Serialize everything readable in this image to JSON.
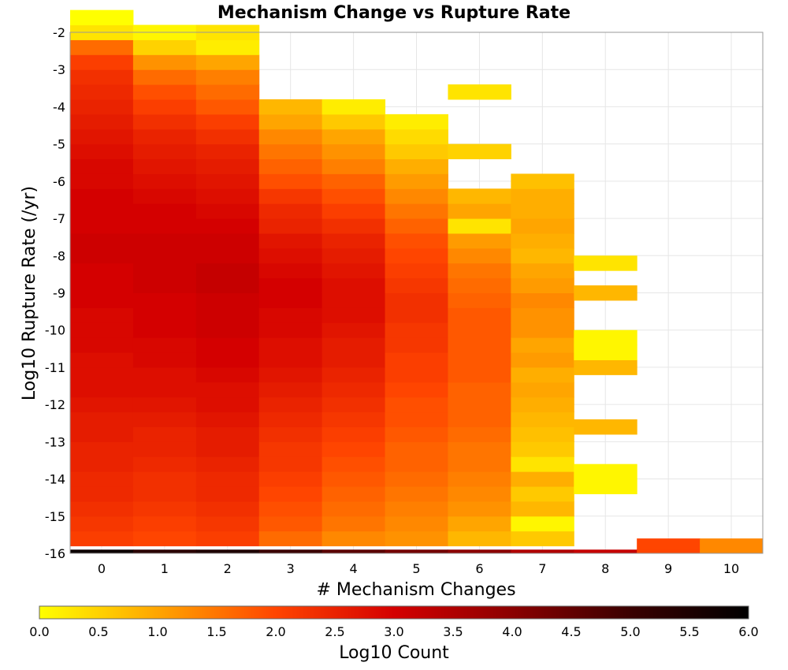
{
  "chart_data": {
    "type": "heatmap",
    "title": "Mechanism Change vs Rupture Rate",
    "xlabel": "# Mechanism Changes",
    "ylabel": "Log10 Rupture Rate (/yr)",
    "xlim": [
      -0.5,
      10.5
    ],
    "ylim": [
      -16,
      -2
    ],
    "x_ticks": [
      0,
      1,
      2,
      3,
      4,
      5,
      6,
      7,
      8,
      9,
      10
    ],
    "y_ticks": [
      -2,
      -3,
      -4,
      -5,
      -6,
      -7,
      -8,
      -9,
      -10,
      -11,
      -12,
      -13,
      -14,
      -15,
      -16
    ],
    "y_bin_width": 0.4,
    "grid": true,
    "colorbar": {
      "label": "Log10 Count",
      "range": [
        0.0,
        6.0
      ],
      "ticks": [
        "0.0",
        "0.5",
        "1.0",
        "1.5",
        "2.0",
        "2.5",
        "3.0",
        "3.5",
        "4.0",
        "4.5",
        "5.0",
        "5.5",
        "6.0"
      ],
      "colors": [
        "#ffff00",
        "#ffa500",
        "#ff4500",
        "#d40000",
        "#8b0000",
        "#3a0000",
        "#000000"
      ]
    },
    "columns": [
      {
        "x": 0,
        "y_start": -15.8,
        "values": [
          2.1,
          2.2,
          2.3,
          2.4,
          2.4,
          2.5,
          2.5,
          2.6,
          2.6,
          2.7,
          2.8,
          2.8,
          2.8,
          2.9,
          2.9,
          2.9,
          3.0,
          3.0,
          3.0,
          3.1,
          3.1,
          3.0,
          3.0,
          3.0,
          2.9,
          2.9,
          2.8,
          2.7,
          2.6,
          2.5,
          2.4,
          2.3,
          2.1,
          1.6,
          0.3,
          0.0
        ]
      },
      {
        "x": 1,
        "y_start": -15.8,
        "values": [
          2.0,
          2.1,
          2.2,
          2.3,
          2.3,
          2.4,
          2.5,
          2.5,
          2.6,
          2.7,
          2.8,
          2.8,
          2.9,
          2.9,
          3.0,
          3.0,
          3.0,
          3.1,
          3.1,
          3.1,
          3.1,
          3.0,
          3.0,
          2.9,
          2.8,
          2.7,
          2.6,
          2.5,
          2.3,
          2.1,
          1.9,
          1.6,
          1.2,
          0.5,
          0.1
        ]
      },
      {
        "x": 2,
        "y_start": -15.8,
        "values": [
          2.1,
          2.2,
          2.3,
          2.4,
          2.4,
          2.5,
          2.6,
          2.6,
          2.7,
          2.8,
          2.8,
          2.9,
          3.0,
          3.0,
          3.1,
          3.1,
          3.1,
          3.2,
          3.2,
          3.1,
          3.1,
          3.0,
          2.9,
          2.8,
          2.7,
          2.6,
          2.5,
          2.3,
          2.1,
          1.8,
          1.6,
          1.4,
          1.0,
          0.2,
          0.3
        ]
      },
      {
        "x": 3,
        "y_start": -15.8,
        "values": [
          1.6,
          1.8,
          1.9,
          2.0,
          2.1,
          2.2,
          2.2,
          2.3,
          2.4,
          2.5,
          2.6,
          2.7,
          2.8,
          2.8,
          2.9,
          2.9,
          3.0,
          3.0,
          2.9,
          2.8,
          2.7,
          2.5,
          2.4,
          2.2,
          1.9,
          1.7,
          1.5,
          1.3,
          1.0,
          0.8
        ]
      },
      {
        "x": 4,
        "y_start": -15.8,
        "values": [
          1.3,
          1.5,
          1.6,
          1.7,
          1.8,
          1.9,
          2.0,
          2.1,
          2.2,
          2.3,
          2.4,
          2.5,
          2.6,
          2.6,
          2.7,
          2.8,
          2.8,
          2.8,
          2.7,
          2.6,
          2.5,
          2.3,
          2.1,
          1.9,
          1.7,
          1.4,
          1.2,
          1.0,
          0.6,
          0.2
        ]
      },
      {
        "x": 5,
        "y_start": -15.8,
        "values": [
          1.2,
          1.3,
          1.4,
          1.5,
          1.6,
          1.7,
          1.7,
          1.8,
          1.9,
          1.9,
          2.0,
          2.1,
          2.1,
          2.2,
          2.2,
          2.3,
          2.3,
          2.2,
          2.1,
          2.0,
          1.9,
          1.7,
          1.5,
          1.3,
          1.1,
          0.9,
          0.6,
          0.4,
          0.2
        ]
      },
      {
        "x": 6,
        "y_start": -15.8,
        "values": [
          0.8,
          1.0,
          1.2,
          1.3,
          1.4,
          1.5,
          1.5,
          1.6,
          1.7,
          1.7,
          1.7,
          1.8,
          1.8,
          1.8,
          1.8,
          1.8,
          1.7,
          1.6,
          1.5,
          1.3,
          1.1,
          0.3,
          1.0,
          0.8,
          null,
          null,
          0.5,
          null,
          null,
          null,
          0.3
        ]
      },
      {
        "x": 7,
        "y_start": -15.8,
        "values": [
          0.6,
          0.1,
          0.8,
          0.6,
          0.9,
          0.3,
          0.6,
          0.7,
          0.8,
          0.9,
          1.0,
          0.9,
          1.1,
          1.0,
          1.2,
          1.2,
          1.3,
          1.1,
          1.0,
          0.8,
          0.9,
          1.0,
          0.9,
          0.9,
          0.7
        ]
      },
      {
        "x": 8,
        "y_start": -14.4,
        "values": [
          0.1,
          0.1,
          null,
          null,
          0.8,
          null,
          null,
          null,
          0.8,
          0.1,
          0.1,
          null,
          null,
          0.8,
          null,
          0.3
        ]
      },
      {
        "x": 9,
        "y_start": -16.0,
        "values": [
          2.0
        ]
      },
      {
        "x": 10,
        "y_start": -16.0,
        "values": [
          1.3
        ]
      }
    ],
    "bottom_row": {
      "y": -16.0,
      "values": [
        5.8,
        5.3,
        5.5,
        5.0,
        4.6,
        4.3,
        4.0,
        3.5,
        3.2,
        2.0,
        1.3
      ]
    }
  }
}
